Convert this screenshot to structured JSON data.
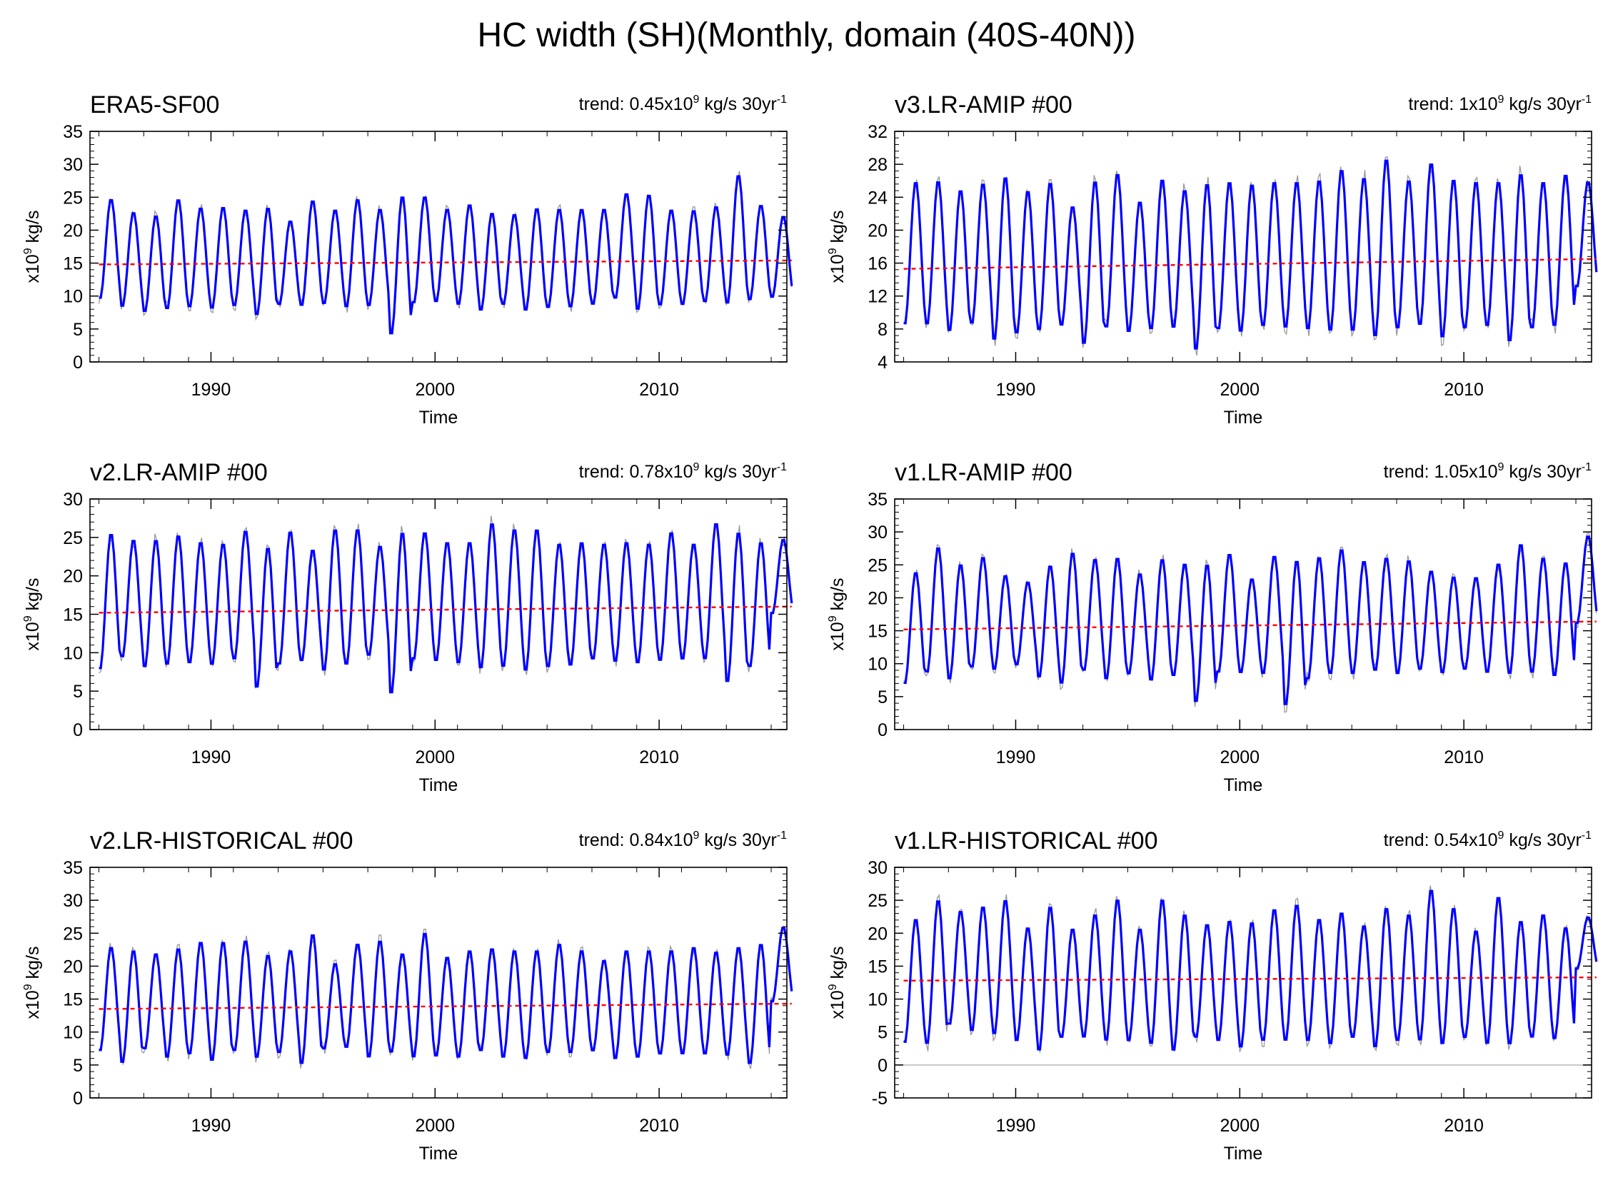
{
  "figure_title": "HC width (SH)(Monthly, domain (40S-40N))",
  "colors": {
    "smoothed": "#0000ff",
    "raw": "#999999",
    "trend": "#ff0000",
    "zero_line": "#c8c8c8"
  },
  "chart_data": [
    {
      "type": "line",
      "title": "ERA5-SF00",
      "trend": {
        "prefix": "trend: ",
        "value": "0.45",
        "unit": " kg/s 30yr"
      },
      "xlabel": "Time",
      "ylabel": "kg/s",
      "ylabel_prefix": "x10",
      "ylabel_exp": "9",
      "xlim": [
        1984.6,
        2015.7
      ],
      "ylim": [
        0,
        35
      ],
      "yticks": [
        0,
        5,
        10,
        15,
        20,
        25,
        30,
        35
      ],
      "xticks": [
        1990,
        2000,
        2010
      ],
      "peaks": [
        24.8,
        22.8,
        22.3,
        24.8,
        23.5,
        23.6,
        23.2,
        23.5,
        21.5,
        24.6,
        23.2,
        24.8,
        23.3,
        25.3,
        25.2,
        23.3,
        24.0,
        22.7,
        22.5,
        23.4,
        23.3,
        23.3,
        23.3,
        25.7,
        25.5,
        23.2,
        23.1,
        23.7,
        28.5,
        23.9,
        22.2
      ],
      "troughs": [
        9.5,
        8.3,
        7.5,
        7.9,
        8.2,
        8.0,
        8.4,
        7.0,
        8.6,
        8.4,
        8.7,
        8.2,
        8.4,
        4.0,
        8.8,
        9.0,
        8.6,
        7.7,
        8.6,
        7.7,
        8.1,
        8.2,
        8.6,
        9.5,
        7.8,
        8.5,
        8.6,
        9.0,
        8.7,
        9.3,
        9.7
      ],
      "trend_line": [
        14.8,
        15.4
      ],
      "zero_line": false
    },
    {
      "type": "line",
      "title": "v3.LR-AMIP  #00",
      "trend": {
        "prefix": "trend: ",
        "value": "1",
        "unit": " kg/s 30yr"
      },
      "xlabel": "Time",
      "ylabel": "kg/s",
      "ylabel_prefix": "x10",
      "ylabel_exp": "9",
      "xlim": [
        1984.6,
        2015.7
      ],
      "ylim": [
        4,
        32
      ],
      "yticks": [
        4,
        8,
        12,
        16,
        20,
        24,
        28,
        32
      ],
      "xticks": [
        1990,
        2000,
        2010
      ],
      "peaks": [
        26.0,
        26.1,
        25.0,
        25.8,
        26.6,
        24.9,
        25.9,
        23.0,
        26.1,
        27.0,
        23.6,
        26.3,
        25.0,
        25.8,
        26.0,
        25.7,
        26.0,
        26.0,
        26.2,
        27.5,
        26.5,
        28.8,
        26.2,
        28.3,
        26.3,
        26.0,
        26.0,
        27.0,
        26.0,
        26.9,
        26.0
      ],
      "troughs": [
        8.4,
        8.4,
        7.6,
        8.5,
        6.5,
        7.3,
        7.7,
        8.3,
        6.0,
        8.0,
        7.5,
        7.8,
        8.0,
        5.3,
        7.8,
        7.5,
        8.2,
        8.0,
        7.8,
        7.6,
        7.6,
        6.9,
        7.9,
        8.3,
        6.8,
        7.9,
        8.2,
        6.3,
        7.9,
        8.2,
        13.0
      ],
      "trend_line": [
        15.3,
        16.5
      ],
      "zero_line": false
    },
    {
      "type": "line",
      "title": "v2.LR-AMIP  #00",
      "trend": {
        "prefix": "trend: ",
        "value": "0.78",
        "unit": " kg/s 30yr"
      },
      "xlabel": "Time",
      "ylabel": "kg/s",
      "ylabel_prefix": "x10",
      "ylabel_exp": "9",
      "xlim": [
        1984.6,
        2015.7
      ],
      "ylim": [
        0,
        30
      ],
      "yticks": [
        0,
        5,
        10,
        15,
        20,
        25,
        30
      ],
      "xticks": [
        1990,
        2000,
        2010
      ],
      "peaks": [
        25.6,
        24.8,
        24.8,
        25.4,
        24.5,
        24.3,
        26.0,
        23.8,
        25.9,
        23.5,
        26.2,
        26.2,
        24.0,
        25.8,
        25.8,
        24.5,
        24.5,
        27.0,
        26.2,
        26.2,
        24.3,
        24.5,
        24.3,
        24.5,
        24.3,
        25.8,
        24.3,
        27.0,
        25.8,
        24.5,
        24.8
      ],
      "troughs": [
        7.7,
        9.3,
        8.0,
        8.3,
        8.5,
        8.3,
        9.0,
        5.3,
        8.3,
        8.8,
        7.5,
        8.3,
        9.5,
        4.5,
        9.0,
        8.8,
        8.5,
        7.8,
        8.0,
        7.5,
        8.0,
        8.2,
        9.0,
        8.7,
        8.5,
        8.8,
        9.0,
        9.0,
        6.0,
        8.0,
        15.0
      ],
      "trend_line": [
        15.2,
        16.0
      ],
      "zero_line": false
    },
    {
      "type": "line",
      "title": "v1.LR-AMIP  #00",
      "trend": {
        "prefix": "trend: ",
        "value": "1.05",
        "unit": " kg/s 30yr"
      },
      "xlabel": "Time",
      "ylabel": "kg/s",
      "ylabel_prefix": "x10",
      "ylabel_exp": "9",
      "xlim": [
        1984.6,
        2015.7
      ],
      "ylim": [
        0,
        35
      ],
      "yticks": [
        0,
        5,
        10,
        15,
        20,
        25,
        30,
        35
      ],
      "xticks": [
        1990,
        2000,
        2010
      ],
      "peaks": [
        24.0,
        27.8,
        25.2,
        26.3,
        23.5,
        22.5,
        25.0,
        27.0,
        26.0,
        26.2,
        23.8,
        26.0,
        25.3,
        25.2,
        26.8,
        23.0,
        26.5,
        25.8,
        26.3,
        27.5,
        25.7,
        26.2,
        25.8,
        24.2,
        23.3,
        23.2,
        25.3,
        28.3,
        26.2,
        25.5,
        29.5
      ],
      "troughs": [
        6.8,
        8.5,
        7.5,
        9.3,
        9.0,
        9.7,
        7.8,
        6.8,
        8.8,
        7.5,
        8.3,
        7.3,
        8.0,
        4.0,
        8.5,
        8.5,
        8.3,
        3.5,
        7.5,
        8.3,
        8.3,
        8.8,
        8.3,
        9.0,
        8.5,
        9.0,
        8.5,
        8.3,
        8.5,
        8.0,
        16.0
      ],
      "trend_line": [
        15.2,
        16.4
      ],
      "zero_line": false
    },
    {
      "type": "line",
      "title": "v2.LR-HISTORICAL  #00",
      "trend": {
        "prefix": "trend: ",
        "value": "0.84",
        "unit": " kg/s 30yr"
      },
      "xlabel": "Time",
      "ylabel": "kg/s",
      "ylabel_prefix": "x10",
      "ylabel_exp": "9",
      "xlim": [
        1984.6,
        2015.7
      ],
      "ylim": [
        0,
        35
      ],
      "yticks": [
        0,
        5,
        10,
        15,
        20,
        25,
        30,
        35
      ],
      "xticks": [
        1990,
        2000,
        2010
      ],
      "peaks": [
        23.0,
        22.5,
        22.0,
        22.8,
        23.8,
        23.8,
        24.0,
        21.8,
        22.5,
        25.0,
        20.5,
        23.5,
        24.0,
        22.0,
        25.2,
        21.5,
        22.5,
        22.8,
        22.5,
        22.5,
        23.5,
        22.5,
        21.0,
        22.5,
        22.5,
        22.5,
        23.0,
        22.3,
        23.0,
        23.5,
        26.0
      ],
      "troughs": [
        7.0,
        5.2,
        7.3,
        6.0,
        6.5,
        5.5,
        7.0,
        6.0,
        6.7,
        5.0,
        7.3,
        7.5,
        6.0,
        6.8,
        6.0,
        6.2,
        6.0,
        7.0,
        6.0,
        5.8,
        6.7,
        6.7,
        7.0,
        5.8,
        6.0,
        6.5,
        6.5,
        6.5,
        6.3,
        5.0,
        14.5
      ],
      "trend_line": [
        13.5,
        14.3
      ],
      "zero_line": false
    },
    {
      "type": "line",
      "title": "v1.LR-HISTORICAL  #00",
      "trend": {
        "prefix": "trend: ",
        "value": "0.54",
        "unit": " kg/s 30yr"
      },
      "xlabel": "Time",
      "ylabel": "kg/s",
      "ylabel_prefix": "x10",
      "ylabel_exp": "9",
      "xlim": [
        1984.6,
        2015.7
      ],
      "ylim": [
        -5,
        30
      ],
      "yticks": [
        -5,
        0,
        5,
        10,
        15,
        20,
        25,
        30
      ],
      "xticks": [
        1990,
        2000,
        2010
      ],
      "peaks": [
        22.3,
        25.2,
        23.5,
        24.2,
        25.2,
        21.0,
        24.2,
        20.8,
        23.0,
        25.3,
        20.8,
        25.3,
        23.0,
        21.5,
        22.0,
        21.8,
        23.8,
        24.5,
        22.3,
        23.3,
        21.3,
        24.0,
        23.0,
        26.8,
        24.0,
        20.5,
        25.7,
        22.0,
        23.0,
        21.0,
        22.5
      ],
      "troughs": [
        3.2,
        3.0,
        6.0,
        5.0,
        4.5,
        3.5,
        2.0,
        4.0,
        4.0,
        3.5,
        3.5,
        3.0,
        2.0,
        4.0,
        3.5,
        2.5,
        3.5,
        3.5,
        3.5,
        3.0,
        4.0,
        2.5,
        3.5,
        3.5,
        3.0,
        4.0,
        3.0,
        3.0,
        4.0,
        3.8,
        14.5
      ],
      "trend_line": [
        12.8,
        13.3
      ],
      "zero_line": true
    }
  ]
}
